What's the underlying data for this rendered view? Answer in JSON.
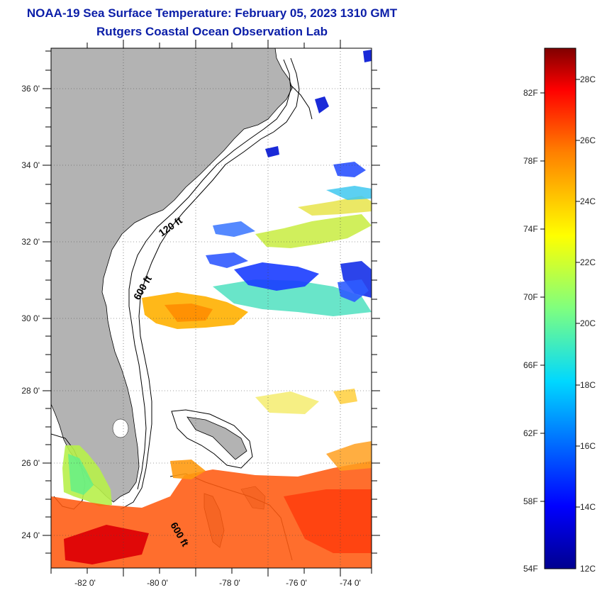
{
  "header": {
    "title": "NOAA-19 Sea Surface Temperature:  February 05, 2023 1310 GMT",
    "subtitle": "Rutgers Coastal Ocean Observation Lab"
  },
  "map": {
    "lon_range": [
      -83,
      -73
    ],
    "lat_range": [
      23,
      37
    ],
    "lon_ticks": [
      "-82 0'",
      "-80 0'",
      "-78 0'",
      "-76 0'",
      "-74 0'"
    ],
    "lat_ticks": [
      "36 0'",
      "34 0'",
      "32 0'",
      "30 0'",
      "28 0'",
      "26 0'",
      "24 0'"
    ],
    "contour_labels": [
      "120 ft",
      "600 ft",
      "600 ft"
    ],
    "land_color": "#b3b3b3",
    "ocean_color": "#ffffff"
  },
  "colorbar": {
    "fahrenheit_labels": [
      "82F",
      "78F",
      "74F",
      "70F",
      "66F",
      "62F",
      "58F",
      "54F"
    ],
    "celsius_labels": [
      "28C",
      "26C",
      "24C",
      "22C",
      "20C",
      "18C",
      "16C",
      "14C",
      "12C"
    ],
    "range_c": [
      12,
      29
    ]
  }
}
